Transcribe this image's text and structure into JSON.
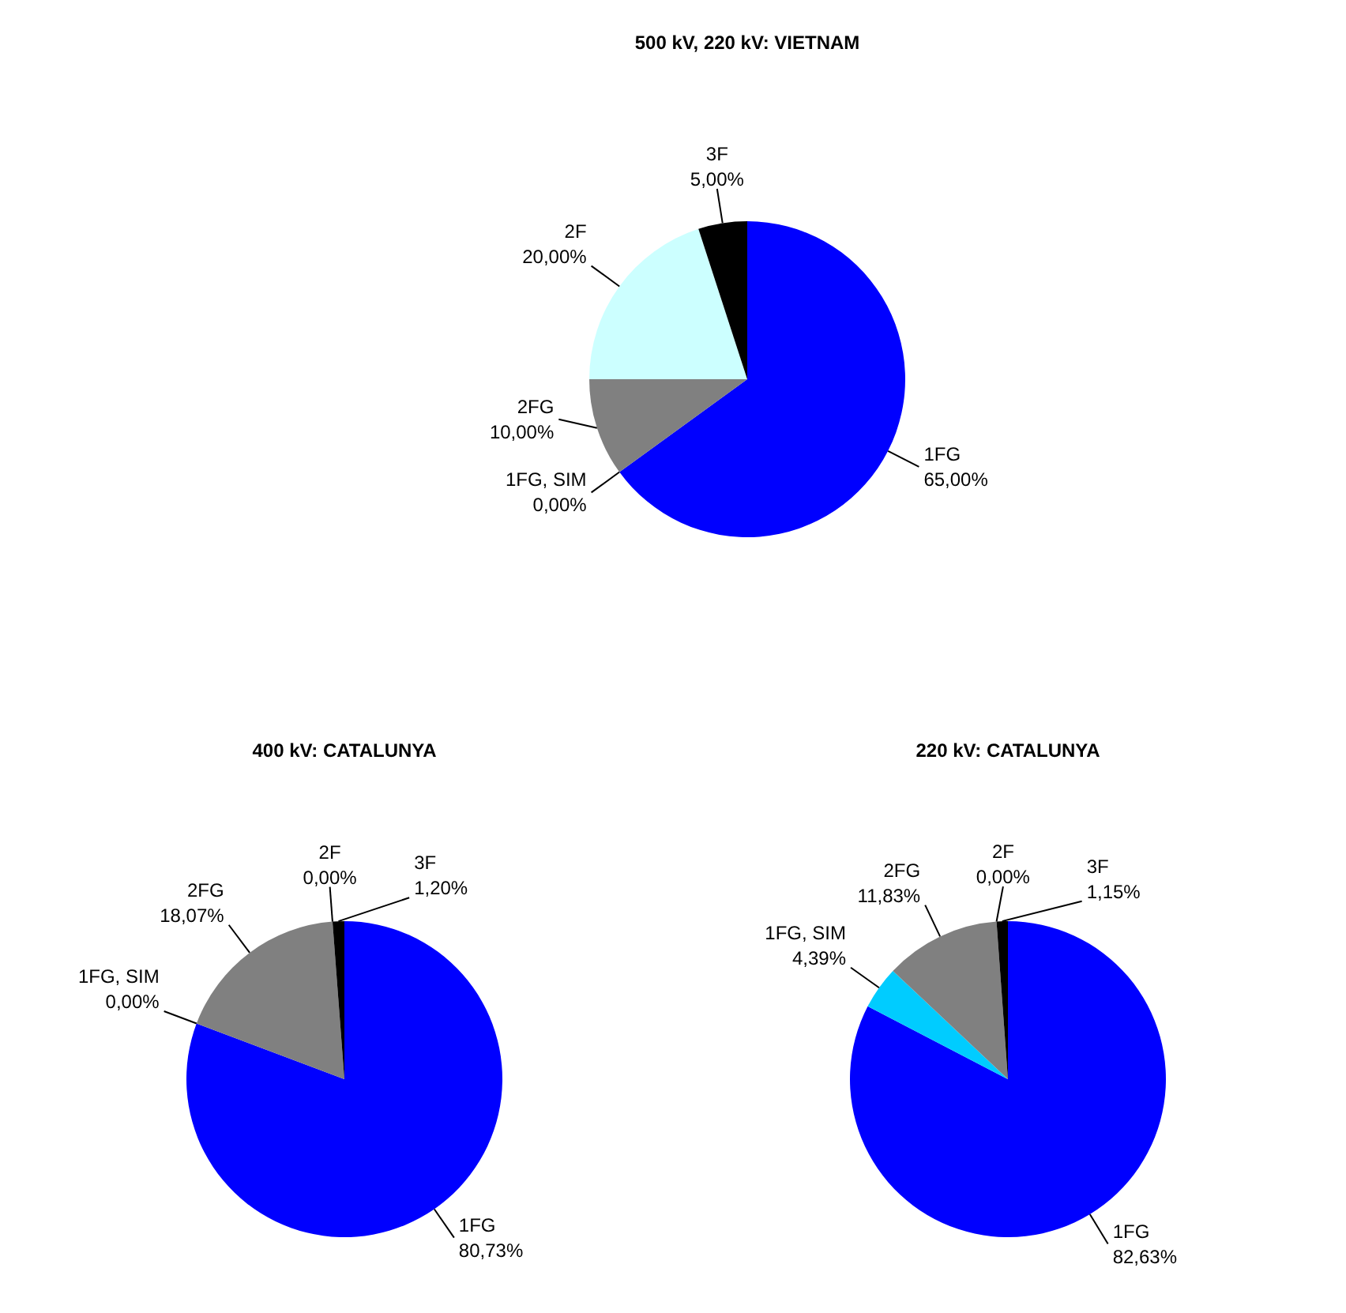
{
  "chart_data": [
    {
      "type": "pie",
      "title": "500 kV, 220 kV: VIETNAM",
      "categories": [
        "1FG",
        "1FG, SIM",
        "2FG",
        "2F",
        "3F"
      ],
      "values": [
        65,
        0,
        10,
        20,
        5
      ],
      "value_labels": [
        "65,00%",
        "0,00%",
        "10,00%",
        "20,00%",
        "5,00%"
      ],
      "colors": [
        "#0000ff",
        "#00ccff",
        "#808080",
        "#ccffff",
        "#000000"
      ]
    },
    {
      "type": "pie",
      "title": "400 kV: CATALUNYA",
      "categories": [
        "1FG",
        "1FG, SIM",
        "2FG",
        "2F",
        "3F"
      ],
      "values": [
        80.73,
        0,
        18.07,
        0,
        1.2
      ],
      "value_labels": [
        "80,73%",
        "0,00%",
        "18,07%",
        "0,00%",
        "1,20%"
      ],
      "colors": [
        "#0000ff",
        "#00ccff",
        "#808080",
        "#ccffff",
        "#000000"
      ]
    },
    {
      "type": "pie",
      "title": "220 kV: CATALUNYA",
      "categories": [
        "1FG",
        "1FG, SIM",
        "2FG",
        "2F",
        "3F"
      ],
      "values": [
        82.63,
        4.39,
        11.83,
        0,
        1.15
      ],
      "value_labels": [
        "82,63%",
        "4,39%",
        "11,83%",
        "0,00%",
        "1,15%"
      ],
      "colors": [
        "#0000ff",
        "#00ccff",
        "#808080",
        "#ccffff",
        "#000000"
      ]
    }
  ]
}
